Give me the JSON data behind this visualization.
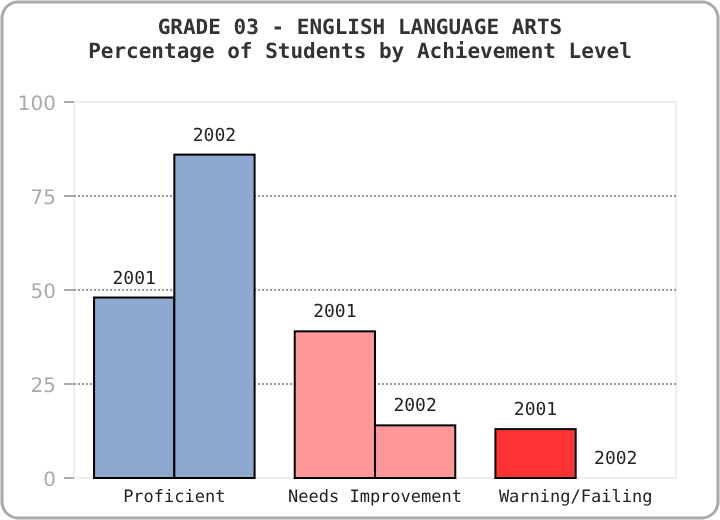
{
  "chart_data": {
    "type": "bar",
    "title": "GRADE 03 - ENGLISH LANGUAGE ARTS",
    "subtitle": "Percentage of Students by Achievement Level",
    "categories": [
      "Proficient",
      "Needs Improvement",
      "Warning/Failing"
    ],
    "series": [
      {
        "name": "2001",
        "colors": [
          "#8fa8cf",
          "#ff9999",
          "#ff3333"
        ],
        "values": [
          48,
          39,
          13
        ]
      },
      {
        "name": "2002",
        "colors": [
          "#8fa8cf",
          "#ff9999",
          "#ff3333"
        ],
        "values": [
          86,
          14,
          0
        ]
      }
    ],
    "ylim": [
      0,
      100
    ],
    "yticks": [
      0,
      25,
      50,
      75,
      100
    ],
    "grid": "y"
  }
}
